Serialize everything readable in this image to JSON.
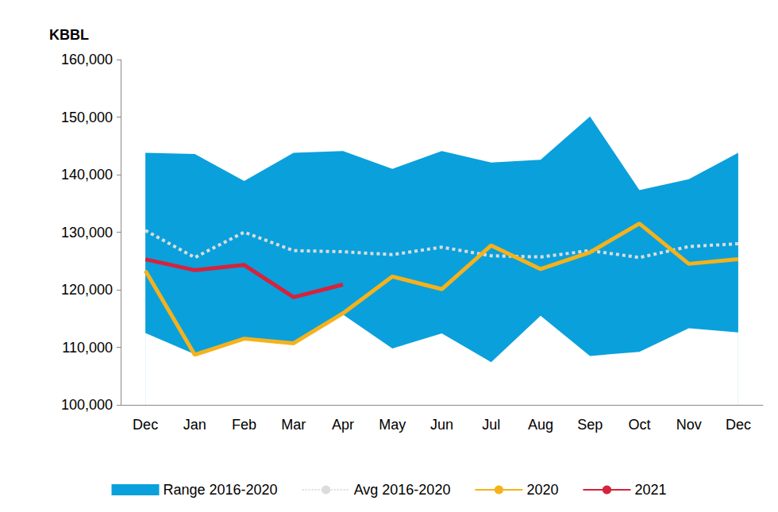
{
  "chart_data": {
    "type": "line",
    "y_label": "KBBL",
    "categories": [
      "Dec",
      "Jan",
      "Feb",
      "Mar",
      "Apr",
      "May",
      "Jun",
      "Jul",
      "Aug",
      "Sep",
      "Oct",
      "Nov",
      "Dec"
    ],
    "ylim": [
      100000,
      160000
    ],
    "yticks": [
      100000,
      110000,
      120000,
      130000,
      140000,
      150000,
      160000
    ],
    "grid": false,
    "legend": "bottom",
    "series": [
      {
        "name": "Range 2016-2020",
        "type": "area",
        "color": "#0aa0dc",
        "values": [
          143800,
          143600,
          138900,
          143800,
          144100,
          141000,
          144100,
          142100,
          142600,
          150100,
          137300,
          139200,
          143800
        ],
        "low": [
          112500,
          108800,
          111500,
          110800,
          115700,
          109800,
          112400,
          107400,
          115500,
          108500,
          109200,
          113300,
          112600
        ]
      },
      {
        "name": "Avg 2016-2020",
        "type": "line",
        "color": "#dcdcdc",
        "line_style": "dotted",
        "values": [
          130300,
          125600,
          130000,
          126800,
          126600,
          126100,
          127400,
          125900,
          125700,
          126800,
          125600,
          127500,
          128000
        ]
      },
      {
        "name": "2020",
        "type": "line",
        "color": "#f5b21b",
        "line_style": "solid",
        "values": [
          123300,
          108700,
          111500,
          110700,
          115900,
          122300,
          120100,
          127700,
          123600,
          126500,
          131500,
          124500,
          125300
        ]
      },
      {
        "name": "2021",
        "type": "line",
        "color": "#d7223c",
        "line_style": "solid",
        "values": [
          125300,
          123400,
          124300,
          118700,
          120900,
          null,
          null,
          null,
          null,
          null,
          null,
          null,
          null
        ]
      }
    ]
  }
}
